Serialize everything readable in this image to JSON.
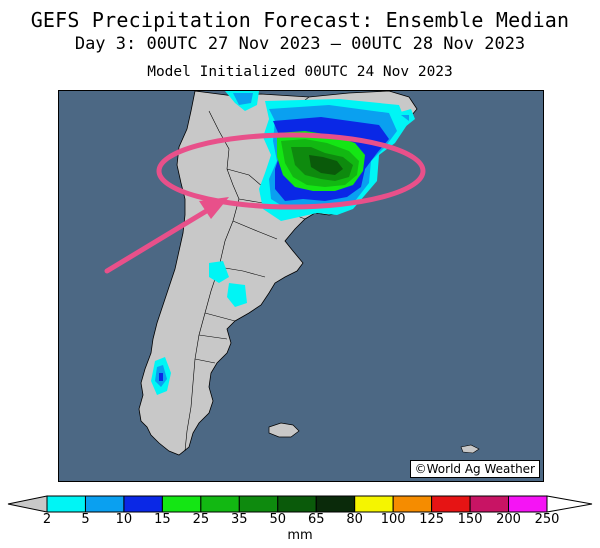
{
  "title": "GEFS Precipitation Forecast: Ensemble Median",
  "subtitle": "Day 3: 00UTC 27 Nov 2023 — 00UTC 28 Nov 2023",
  "init_line": "Model Initialized 00UTC 24 Nov 2023",
  "credit": "©World Ag Weather",
  "colors": {
    "ocean": "#4c6884",
    "land": "#c8c8c8",
    "annotation": "#e8508a"
  },
  "legend": {
    "unit": "mm",
    "ticks": [
      "2",
      "5",
      "10",
      "15",
      "25",
      "35",
      "50",
      "65",
      "80",
      "100",
      "125",
      "150",
      "200",
      "250"
    ],
    "under_color": "#c8c8c8",
    "over_color": "#ffffff",
    "bins": [
      {
        "from": "2",
        "to": "5",
        "color": "#00f5f5"
      },
      {
        "from": "5",
        "to": "10",
        "color": "#0aa0f0"
      },
      {
        "from": "10",
        "to": "15",
        "color": "#0a28e6"
      },
      {
        "from": "15",
        "to": "25",
        "color": "#14e614"
      },
      {
        "from": "25",
        "to": "35",
        "color": "#12b812"
      },
      {
        "from": "35",
        "to": "50",
        "color": "#0e8a0e"
      },
      {
        "from": "50",
        "to": "65",
        "color": "#0a5a0a"
      },
      {
        "from": "65",
        "to": "80",
        "color": "#0a2a0a"
      },
      {
        "from": "80",
        "to": "100",
        "color": "#f5f500"
      },
      {
        "from": "100",
        "to": "125",
        "color": "#f58c00"
      },
      {
        "from": "125",
        "to": "150",
        "color": "#e61414"
      },
      {
        "from": "150",
        "to": "200",
        "color": "#c81464"
      },
      {
        "from": "200",
        "to": "250",
        "color": "#f514f5"
      },
      {
        "from": "250",
        "to": "",
        "color": "#9b4bd2"
      }
    ]
  }
}
